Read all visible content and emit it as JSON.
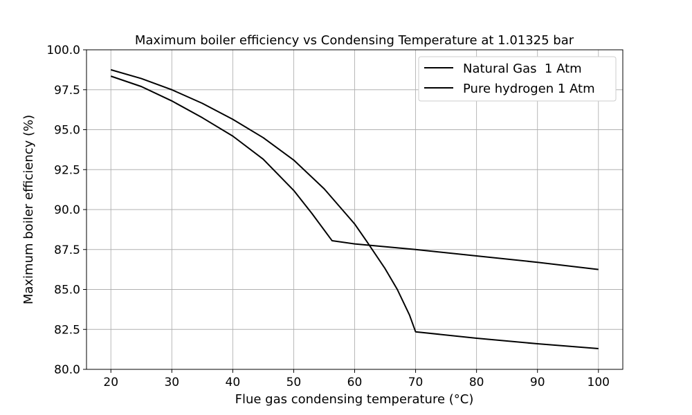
{
  "chart_data": {
    "type": "line",
    "title": "Maximum boiler efficiency vs Condensing Temperature at 1.01325 bar",
    "xlabel": "Flue gas condensing temperature (°C)",
    "ylabel": "Maximum boiler efficiency (%)",
    "xlim": [
      16,
      104
    ],
    "ylim": [
      80.0,
      100.0
    ],
    "x_ticks": [
      20,
      30,
      40,
      50,
      60,
      70,
      80,
      90,
      100
    ],
    "y_ticks": [
      80.0,
      82.5,
      85.0,
      87.5,
      90.0,
      92.5,
      95.0,
      97.5,
      100.0
    ],
    "x_tick_labels": [
      "20",
      "30",
      "40",
      "50",
      "60",
      "70",
      "80",
      "90",
      "100"
    ],
    "y_tick_labels": [
      "80.0",
      "82.5",
      "85.0",
      "87.5",
      "90.0",
      "92.5",
      "95.0",
      "97.5",
      "100.0"
    ],
    "grid": true,
    "legend_position": "top-right",
    "series": [
      {
        "name": "Natural Gas  1 Atm",
        "color": "#000000",
        "points": [
          [
            20,
            98.75
          ],
          [
            25,
            98.2
          ],
          [
            30,
            97.5
          ],
          [
            35,
            96.65
          ],
          [
            40,
            95.65
          ],
          [
            45,
            94.5
          ],
          [
            50,
            93.1
          ],
          [
            55,
            91.3
          ],
          [
            60,
            89.1
          ],
          [
            62,
            88.0
          ],
          [
            65,
            86.3
          ],
          [
            67,
            85.0
          ],
          [
            69,
            83.4
          ],
          [
            70,
            82.35
          ],
          [
            80,
            81.95
          ],
          [
            90,
            81.6
          ],
          [
            100,
            81.3
          ]
        ]
      },
      {
        "name": "Pure hydrogen 1 Atm",
        "color": "#000000",
        "points": [
          [
            20,
            98.35
          ],
          [
            25,
            97.7
          ],
          [
            30,
            96.8
          ],
          [
            35,
            95.75
          ],
          [
            40,
            94.6
          ],
          [
            45,
            93.15
          ],
          [
            50,
            91.2
          ],
          [
            53,
            89.75
          ],
          [
            56.3,
            88.05
          ],
          [
            60,
            87.85
          ],
          [
            70,
            87.5
          ],
          [
            80,
            87.1
          ],
          [
            90,
            86.7
          ],
          [
            100,
            86.25
          ]
        ]
      }
    ]
  }
}
